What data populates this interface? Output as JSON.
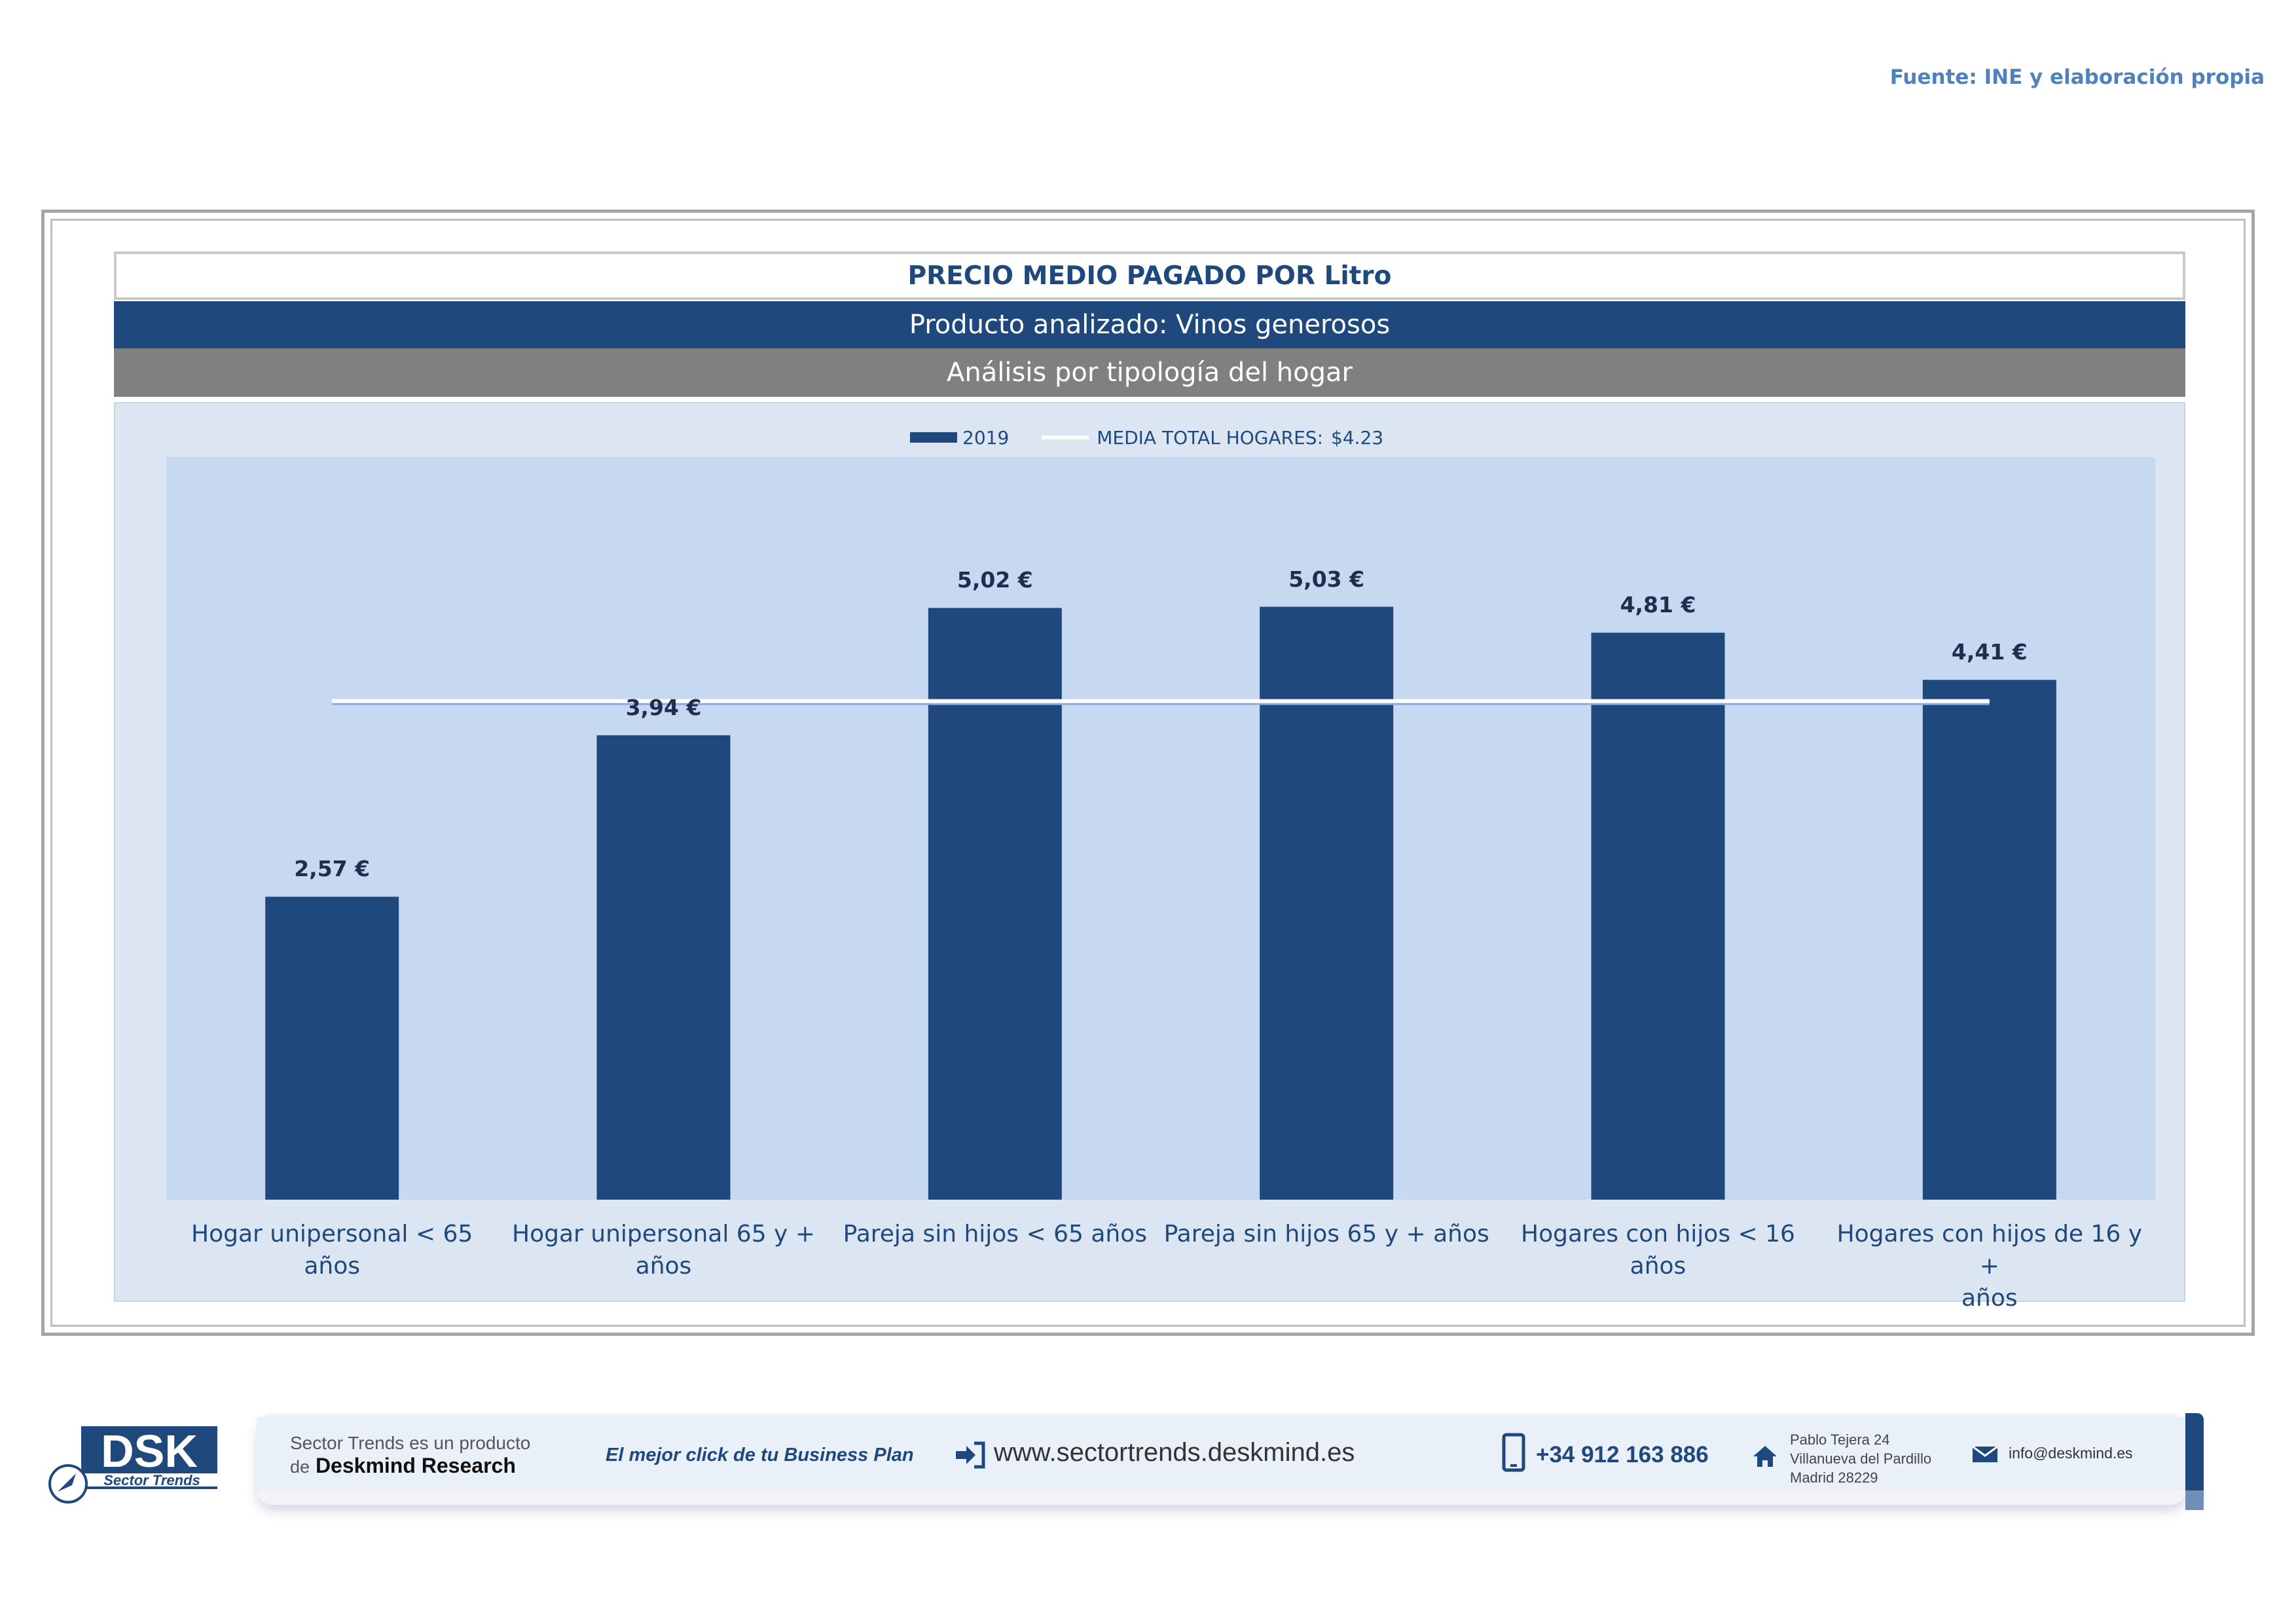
{
  "source": "Fuente: INE y elaboración propia",
  "header": {
    "title": "PRECIO MEDIO PAGADO POR Litro",
    "product": "Producto analizado: Vinos generosos",
    "analysis": "Análisis por tipología del hogar"
  },
  "legend": {
    "series_label": "2019",
    "avg_label": "MEDIA TOTAL  HOGARES:",
    "avg_value": "$4.23"
  },
  "chart_data": {
    "type": "bar",
    "title": "PRECIO MEDIO PAGADO POR Litro",
    "categories": [
      [
        "Hogar unipersonal < 65 años"
      ],
      [
        "Hogar unipersonal  65 y +",
        "años"
      ],
      [
        "Pareja sin hijos < 65 años"
      ],
      [
        "Pareja sin hijos 65 y + años"
      ],
      [
        "Hogares con hijos < 16 años"
      ],
      [
        "Hogares con hijos de 16 y +",
        "años"
      ]
    ],
    "series": [
      {
        "name": "2019",
        "values": [
          2.57,
          3.94,
          5.02,
          5.03,
          4.81,
          4.41
        ]
      }
    ],
    "value_labels": [
      "2,57 €",
      "3,94 €",
      "5,02 €",
      "5,03 €",
      "4,81 €",
      "4,41 €"
    ],
    "reference_line": {
      "name": "MEDIA TOTAL  HOGARES:",
      "value": 4.23
    },
    "ylim": [
      0,
      6.3
    ],
    "grid": false,
    "legend_position": "top-center",
    "colors": {
      "bar": "#1f497d",
      "plot_bg": "#c6d9f0",
      "line": "#ffffff"
    }
  },
  "footer": {
    "logo_text": "DSK",
    "logo_sub": "Sector Trends",
    "product_line1": "Sector Trends es un producto",
    "product_line2_prefix": "de",
    "product_line2_brand": "Deskmind Research",
    "slogan": "El mejor click de tu Business Plan",
    "website": "www.sectortrends.deskmind.es",
    "phone": "+34 912 163 886",
    "address_line1": "Pablo Tejera 24",
    "address_line2": "Villanueva del Pardillo",
    "address_line3": "Madrid 28229",
    "email": "info@deskmind.es"
  }
}
